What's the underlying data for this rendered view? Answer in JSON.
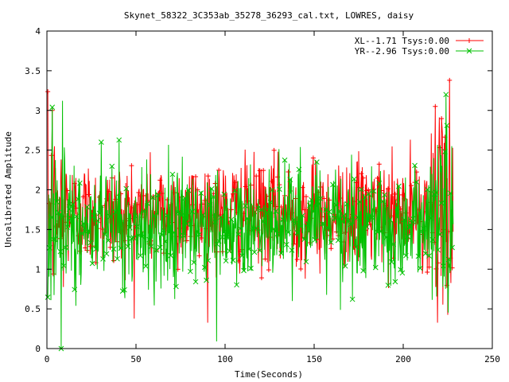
{
  "chart_data": {
    "type": "line",
    "title": "Skynet_58322_3C353ab_35278_36293_cal.txt, LOWRES, daisy",
    "xlabel": "Time(Seconds)",
    "ylabel": "Uncalibrated Amplitude",
    "xlim": [
      0,
      250
    ],
    "ylim": [
      0,
      4
    ],
    "xticks": [
      0,
      50,
      100,
      150,
      200,
      250
    ],
    "yticks": [
      0,
      0.5,
      1,
      1.5,
      2,
      2.5,
      3,
      3.5,
      4
    ],
    "xtick_labels": [
      "0",
      "50",
      "100",
      "150",
      "200",
      "250"
    ],
    "ytick_labels": [
      "0",
      "0.5",
      "1",
      "1.5",
      "2",
      "2.5",
      "3",
      "3.5",
      "4"
    ],
    "grid": false,
    "legend_position": "top-right",
    "x_range_data": [
      0,
      228
    ],
    "series": [
      {
        "name": "XL--1.71 Tsys:0.00",
        "color": "#ff0000",
        "marker": "plus",
        "mean": 1.71,
        "spread": 0.33,
        "edge_spread": 0.55,
        "min": 0.0,
        "max": 3.38,
        "peaks": [
          {
            "x": 3,
            "y": 3.0
          },
          {
            "x": 218,
            "y": 3.05
          },
          {
            "x": 226,
            "y": 3.38
          }
        ]
      },
      {
        "name": "YR--2.96 Tsys:0.00",
        "color": "#00c000",
        "marker": "cross",
        "mean": 1.55,
        "spread": 0.35,
        "edge_spread": 0.6,
        "min": 0.0,
        "max": 3.2,
        "peaks": [
          {
            "x": 3,
            "y": 3.04
          },
          {
            "x": 8,
            "y": 0.0
          },
          {
            "x": 224,
            "y": 3.2
          }
        ]
      }
    ]
  }
}
